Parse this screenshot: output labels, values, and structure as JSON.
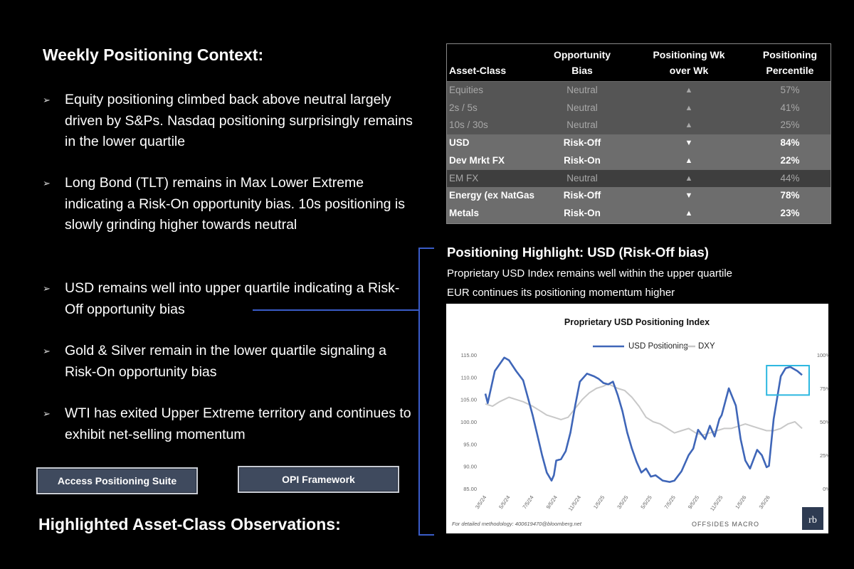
{
  "heading": "Weekly Positioning Context:",
  "bullets": [
    "Equity positioning climbed back above neutral largely driven by S&Ps. Nasdaq positioning surprisingly remains in the lower quartile",
    "Long Bond (TLT) remains in Max Lower Extreme indicating a Risk-On opportunity bias. 10s positioning is slowly grinding higher towards neutral",
    "USD remains well into upper quartile indicating a Risk-Off opportunity bias",
    "Gold & Silver remain in the lower quartile signaling a Risk-On opportunity bias",
    "WTI has exited Upper Extreme territory and continues to exhibit net-selling momentum"
  ],
  "bullet_marker": "➢",
  "buttons": {
    "access": "Access Positioning Suite",
    "framework": "OPI Framework"
  },
  "observations_heading": "Highlighted Asset-Class Observations:",
  "table": {
    "headers": {
      "asset": "Asset-Class",
      "bias": "Opportunity Bias",
      "wow": "Positioning Wk over Wk",
      "pct": "Positioning Percentile"
    },
    "rows": [
      {
        "asset": "Equities",
        "bias": "Neutral",
        "wow": "▲",
        "pct": "57%",
        "style": "neutral"
      },
      {
        "asset": "2s / 5s",
        "bias": "Neutral",
        "wow": "▲",
        "pct": "41%",
        "style": "neutral"
      },
      {
        "asset": "10s / 30s",
        "bias": "Neutral",
        "wow": "▲",
        "pct": "25%",
        "style": "neutral"
      },
      {
        "asset": "USD",
        "bias": "Risk-Off",
        "wow": "▼",
        "pct": "84%",
        "style": "hot"
      },
      {
        "asset": "Dev Mrkt FX",
        "bias": "Risk-On",
        "wow": "▲",
        "pct": "22%",
        "style": "hot"
      },
      {
        "asset": "EM FX",
        "bias": "Neutral",
        "wow": "▲",
        "pct": "44%",
        "style": "dark"
      },
      {
        "asset": "Energy (ex NatGas",
        "bias": "Risk-Off",
        "wow": "▼",
        "pct": "78%",
        "style": "hot"
      },
      {
        "asset": "Metals",
        "bias": "Risk-On",
        "wow": "▲",
        "pct": "23%",
        "style": "hot"
      }
    ]
  },
  "highlight": {
    "title": "Positioning Highlight: USD (Risk-Off bias)",
    "lines": [
      "Proprietary USD Index remains well within the upper quartile",
      "EUR continues its positioning momentum higher"
    ]
  },
  "colors": {
    "usd": "#3f66b8",
    "dxy": "#c8c8c8",
    "highlight_box": "#2bb7e0",
    "connector": "#3a5cc8"
  },
  "chart_data": {
    "type": "line",
    "title": "Proprietary USD Positioning Index",
    "footnote": "For detailed methodology: 400619470@bloomberg.net",
    "brand": "OFFSIDES MACRO",
    "logo_text": "rb",
    "x_ticks": [
      "3/5/24",
      "5/5/24",
      "7/5/24",
      "9/5/24",
      "11/5/24",
      "1/5/25",
      "3/5/25",
      "5/5/25",
      "7/5/25",
      "9/5/25",
      "11/5/25",
      "1/5/26",
      "3/5/26"
    ],
    "y_left_ticks": [
      "85.00",
      "90.00",
      "95.00",
      "100.00",
      "105.00",
      "110.00",
      "115.00"
    ],
    "y_left_range": [
      85,
      115
    ],
    "y_right_ticks": [
      "0%",
      "25%",
      "50%",
      "75%",
      "100%"
    ],
    "y_right_range": [
      0,
      100
    ],
    "series": [
      {
        "name": "USD Positioning",
        "axis": "right",
        "color": "#3f66b8",
        "x": [
          0,
          0.1,
          0.4,
          0.8,
          1.0,
          1.3,
          1.6,
          1.8,
          2.0,
          2.2,
          2.4,
          2.6,
          2.8,
          2.9,
          3.0,
          3.2,
          3.4,
          3.6,
          3.8,
          4.0,
          4.3,
          4.6,
          4.8,
          5.0,
          5.2,
          5.4,
          5.6,
          5.8,
          6.0,
          6.2,
          6.4,
          6.6,
          6.8,
          7.0,
          7.2,
          7.5,
          7.8,
          8.0,
          8.3,
          8.6,
          8.8,
          9.0,
          9.3,
          9.5,
          9.7,
          9.9,
          10.0,
          10.3,
          10.6,
          10.8,
          11.0,
          11.2,
          11.5,
          11.7,
          11.9,
          12.0,
          12.2,
          12.5,
          12.7,
          12.9,
          13.2,
          13.4
        ],
        "y": [
          71,
          64,
          88,
          98,
          96,
          88,
          81,
          68,
          55,
          40,
          25,
          12,
          6,
          10,
          21,
          22,
          28,
          42,
          62,
          80,
          86,
          84,
          82,
          79,
          78,
          80,
          70,
          58,
          42,
          30,
          20,
          12,
          15,
          9,
          10,
          6,
          5,
          6,
          13,
          25,
          30,
          44,
          37,
          47,
          39,
          52,
          55,
          75,
          62,
          37,
          21,
          15,
          29,
          25,
          16,
          17,
          52,
          84,
          90,
          91,
          88,
          85
        ]
      },
      {
        "name": "DXY",
        "axis": "left",
        "color": "#c8c8c8",
        "x": [
          0,
          0.3,
          0.6,
          1.0,
          1.3,
          1.6,
          2.0,
          2.3,
          2.6,
          2.9,
          3.2,
          3.5,
          3.8,
          4.1,
          4.4,
          4.7,
          5.0,
          5.2,
          5.4,
          5.6,
          5.9,
          6.2,
          6.5,
          6.8,
          7.1,
          7.4,
          7.7,
          8.0,
          8.3,
          8.6,
          8.9,
          9.2,
          9.5,
          9.8,
          10.1,
          10.4,
          10.7,
          11.0,
          11.3,
          11.6,
          11.9,
          12.2,
          12.5,
          12.8,
          13.1,
          13.4
        ],
        "y": [
          104,
          103.5,
          104.5,
          105.5,
          105,
          104.5,
          103.5,
          102.5,
          101.5,
          101,
          100.5,
          101,
          103,
          105,
          106.5,
          107.5,
          108,
          108.5,
          108,
          107.5,
          107,
          105.5,
          103.5,
          101,
          100,
          99.5,
          98.5,
          97.5,
          98,
          98.5,
          97.5,
          97,
          97.5,
          98,
          98.5,
          98.5,
          99,
          99.5,
          99,
          98.5,
          98,
          98,
          98.5,
          99.5,
          100,
          98.5
        ]
      }
    ],
    "highlight_box": {
      "x_range": [
        11.9,
        13.7
      ],
      "y_range_pct": [
        70,
        92
      ]
    },
    "grid": false,
    "legend": "top-center"
  }
}
